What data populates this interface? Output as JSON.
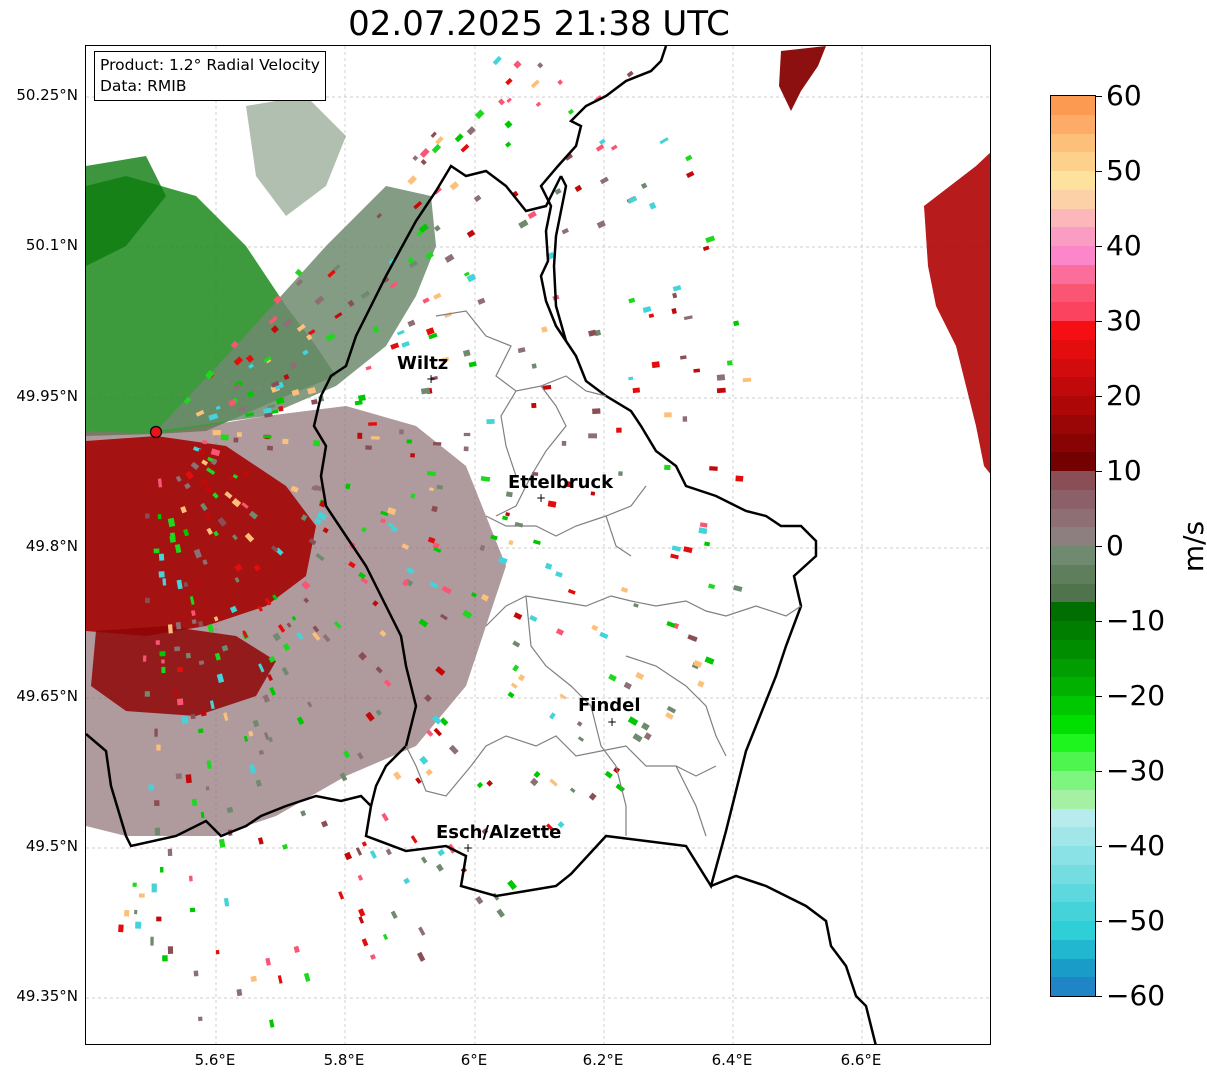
{
  "title": "02.07.2025 21:38 UTC",
  "info": {
    "product": "Product: 1.2° Radial Velocity",
    "source": "Data: RMIB"
  },
  "axes": {
    "lat_ticks": [
      "50.25°N",
      "50.1°N",
      "49.95°N",
      "49.8°N",
      "49.65°N",
      "49.5°N",
      "49.35°N"
    ],
    "lon_ticks": [
      "5.6°E",
      "5.8°E",
      "6°E",
      "6.2°E",
      "6.4°E",
      "6.6°E"
    ],
    "grid": true
  },
  "cities": [
    {
      "name": "Wiltz"
    },
    {
      "name": "Ettelbruck"
    },
    {
      "name": "Findel"
    },
    {
      "name": "Esch/Alzette"
    }
  ],
  "radar_site_color": "#e8141c",
  "colorbar": {
    "unit": "m/s",
    "min": -60,
    "max": 60,
    "tick_labels": [
      "60",
      "50",
      "40",
      "30",
      "20",
      "10",
      "0",
      "−10",
      "−20",
      "−30",
      "−40",
      "−50",
      "−60"
    ],
    "bands_top_to_bottom": [
      "#fd9a52",
      "#fdab67",
      "#fdc07a",
      "#fdd08c",
      "#fde29e",
      "#fdd1a8",
      "#fbb7b9",
      "#fb9dc3",
      "#fb86c9",
      "#fb6d9a",
      "#fb5574",
      "#fb425e",
      "#f50f12",
      "#e40d0e",
      "#d20b0c",
      "#c0090a",
      "#ad0708",
      "#9a0506",
      "#870304",
      "#740102",
      "#8a4f56",
      "#8c6068",
      "#8d6f74",
      "#8d7f7f",
      "#6f8a6e",
      "#5f7f5c",
      "#4f744c",
      "#006e00",
      "#007e00",
      "#008e00",
      "#009e00",
      "#00b100",
      "#00c800",
      "#00df00",
      "#1ef51e",
      "#4ff54f",
      "#7ef57e",
      "#a4f1a4",
      "#b7ecef",
      "#a1e7ea",
      "#8be2e6",
      "#74dde2",
      "#5cd8de",
      "#45d3da",
      "#2ecfd6",
      "#22b7d0",
      "#1a9cc8",
      "#1f85c6"
    ]
  }
}
